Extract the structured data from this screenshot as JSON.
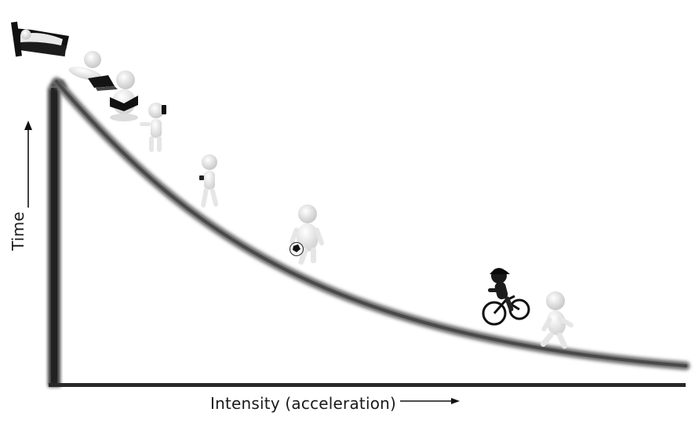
{
  "diagram": {
    "y_axis_label": "Time",
    "x_axis_label": "Intensity (acceleration)",
    "figures": [
      {
        "name": "sleeping-in-bed-figure",
        "activity": "sleeping"
      },
      {
        "name": "lying-with-laptop-figure",
        "activity": "using laptop"
      },
      {
        "name": "sitting-reading-figure",
        "activity": "reading"
      },
      {
        "name": "standing-phone-figure",
        "activity": "standing on phone"
      },
      {
        "name": "walking-figure",
        "activity": "walking"
      },
      {
        "name": "soccer-figure",
        "activity": "playing soccer"
      },
      {
        "name": "cyclist-figure",
        "activity": "cycling"
      },
      {
        "name": "running-figure",
        "activity": "running"
      }
    ]
  },
  "colors": {
    "axis": "#2a2a2a",
    "curve": "#5a5a5a",
    "figure_light": "#f2f2f2",
    "figure_dark": "#1c1c1c"
  }
}
